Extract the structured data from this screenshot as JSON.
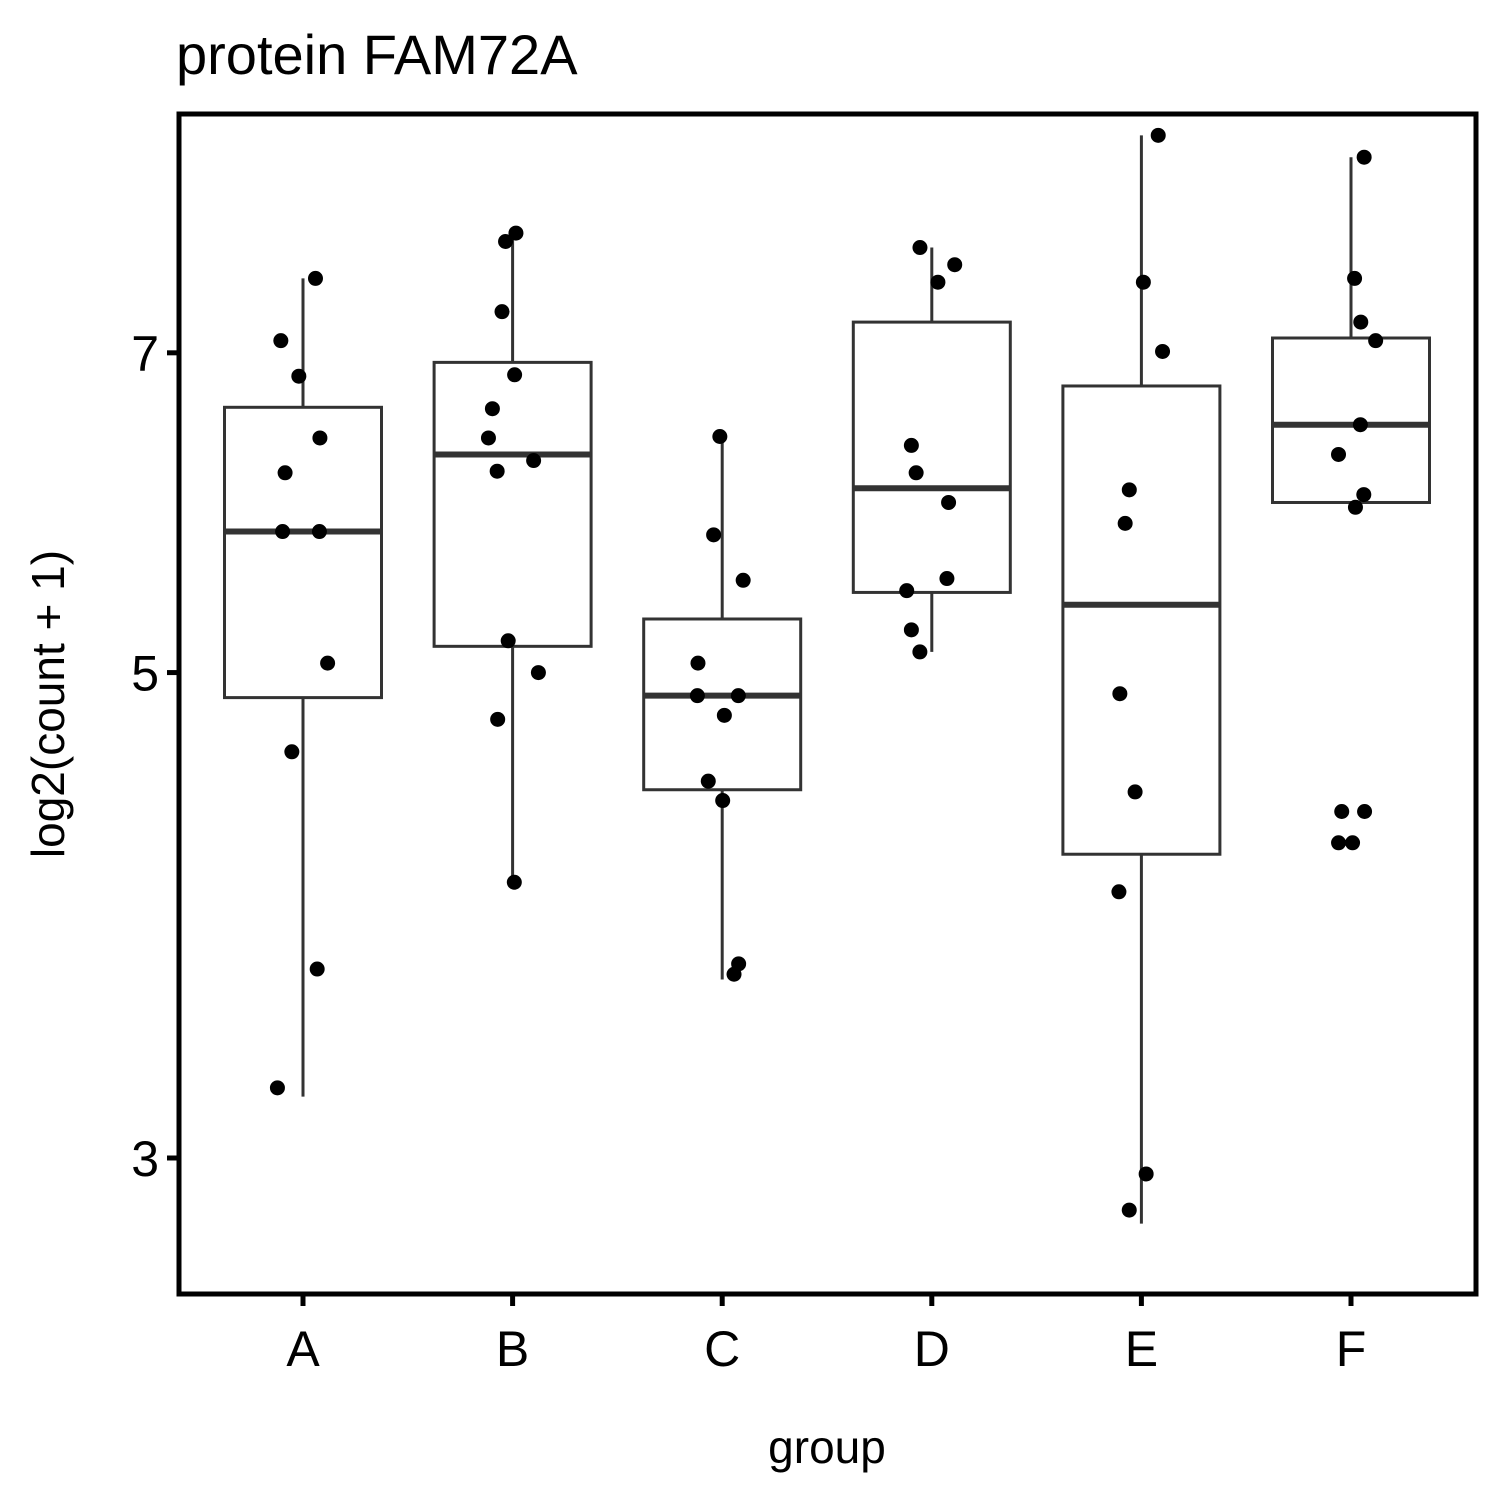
{
  "chart_data": {
    "type": "boxplot",
    "title": "protein FAM72A",
    "xlabel": "group",
    "ylabel": "log2(count + 1)",
    "scale": "log",
    "ylim": [
      2.6,
      9.0
    ],
    "yticks": [
      3,
      5,
      7
    ],
    "categories": [
      "A",
      "B",
      "C",
      "D",
      "E",
      "F"
    ],
    "boxes": [
      {
        "group": "A",
        "whisker_low": 3.2,
        "q1": 4.87,
        "median": 5.8,
        "q3": 6.61,
        "whisker_high": 7.57
      },
      {
        "group": "B",
        "whisker_low": 4.01,
        "q1": 5.14,
        "median": 6.29,
        "q3": 6.93,
        "whisker_high": 7.94
      },
      {
        "group": "C",
        "whisker_low": 3.62,
        "q1": 4.42,
        "median": 4.88,
        "q3": 5.29,
        "whisker_high": 6.41
      },
      {
        "group": "D",
        "whisker_low": 5.11,
        "q1": 5.44,
        "median": 6.07,
        "q3": 7.23,
        "whisker_high": 7.82
      },
      {
        "group": "E",
        "whisker_low": 2.8,
        "q1": 4.13,
        "median": 5.37,
        "q3": 6.76,
        "whisker_high": 8.8
      },
      {
        "group": "F",
        "whisker_low": 5.95,
        "q1": 5.98,
        "median": 6.49,
        "q3": 7.11,
        "whisker_high": 8.6
      }
    ],
    "points": [
      {
        "group": "A",
        "values": [
          7.57,
          7.09,
          6.83,
          6.4,
          6.17,
          5.8,
          5.8,
          5.05,
          4.6,
          3.66,
          3.23
        ]
      },
      {
        "group": "B",
        "values": [
          7.94,
          7.87,
          7.31,
          6.84,
          6.6,
          6.4,
          6.25,
          6.18,
          5.17,
          5.0,
          4.76,
          4.01
        ]
      },
      {
        "group": "C",
        "values": [
          6.41,
          5.78,
          5.51,
          5.05,
          4.88,
          4.88,
          4.78,
          4.46,
          4.37,
          3.68,
          3.64
        ]
      },
      {
        "group": "D",
        "values": [
          7.82,
          7.68,
          7.54,
          6.35,
          6.17,
          5.98,
          5.52,
          5.45,
          5.23,
          5.11
        ]
      },
      {
        "group": "E",
        "values": [
          8.8,
          7.54,
          7.01,
          6.06,
          5.85,
          4.89,
          4.41,
          3.97,
          2.95,
          2.84
        ]
      },
      {
        "group": "F",
        "values": [
          8.6,
          7.57,
          7.23,
          7.09,
          6.49,
          6.29,
          6.03,
          5.95,
          4.32,
          4.32,
          4.18,
          4.18
        ]
      }
    ],
    "legend": "none",
    "grid": false
  }
}
